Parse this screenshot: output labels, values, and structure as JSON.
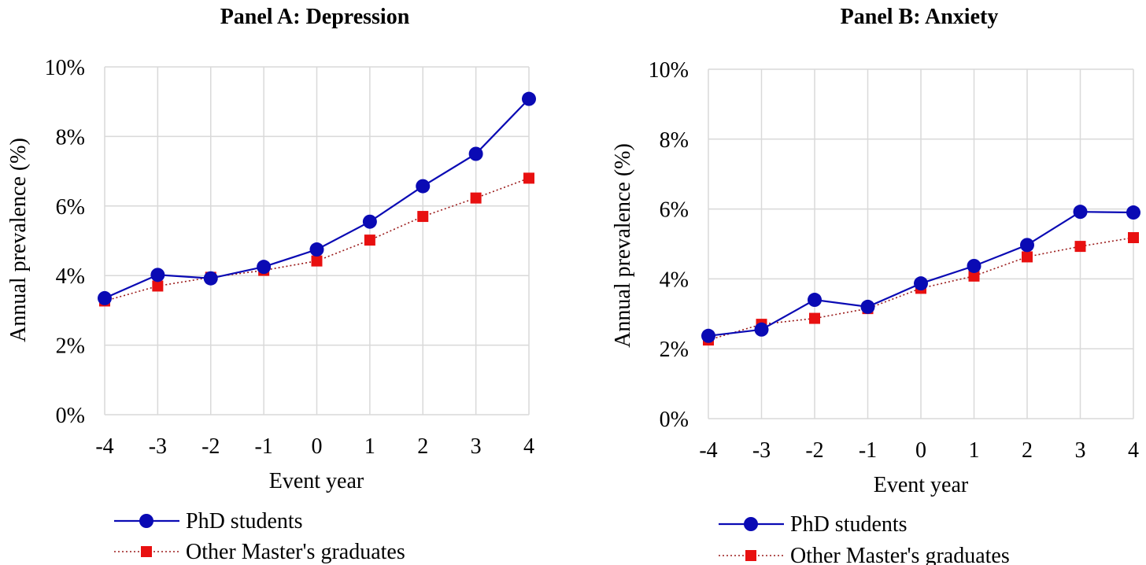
{
  "chart_data": [
    {
      "type": "line",
      "title": "Panel A: Depression",
      "xlabel": "Event year",
      "ylabel": "Annual prevalence (%)",
      "x": [
        -4,
        -3,
        -2,
        -1,
        0,
        1,
        2,
        3,
        4
      ],
      "x_tick_labels": [
        "-4",
        "-3",
        "-2",
        "-1",
        "0",
        "1",
        "2",
        "3",
        "4"
      ],
      "ylim": [
        0,
        10
      ],
      "y_tick_labels": [
        "0%",
        "2%",
        "4%",
        "6%",
        "8%",
        "10%"
      ],
      "grid": true,
      "legend_placement": "bottom",
      "series": [
        {
          "name": "PhD students",
          "values": [
            3.35,
            4.02,
            3.92,
            4.25,
            4.75,
            5.55,
            6.57,
            7.5,
            9.08
          ],
          "color": "#0a0ab4",
          "marker": "circle",
          "line": "solid"
        },
        {
          "name": "Other Master's graduates",
          "values": [
            3.27,
            3.7,
            3.95,
            4.15,
            4.42,
            5.02,
            5.7,
            6.23,
            6.8
          ],
          "color": "#e81010",
          "line_color": "#9b1b1b",
          "marker": "square",
          "line": "dotted"
        }
      ]
    },
    {
      "type": "line",
      "title": "Panel B: Anxiety",
      "xlabel": "Event year",
      "ylabel": "Annual prevalence (%)",
      "x": [
        -4,
        -3,
        -2,
        -1,
        0,
        1,
        2,
        3,
        4
      ],
      "x_tick_labels": [
        "-4",
        "-3",
        "-2",
        "-1",
        "0",
        "1",
        "2",
        "3",
        "4"
      ],
      "ylim": [
        0,
        10
      ],
      "y_tick_labels": [
        "0%",
        "2%",
        "4%",
        "6%",
        "8%",
        "10%"
      ],
      "grid": true,
      "legend_placement": "bottom",
      "series": [
        {
          "name": "PhD students",
          "values": [
            2.37,
            2.55,
            3.4,
            3.2,
            3.87,
            4.37,
            4.97,
            5.92,
            5.9
          ],
          "color": "#0a0ab4",
          "marker": "circle",
          "line": "solid"
        },
        {
          "name": "Other Master's graduates",
          "values": [
            2.25,
            2.7,
            2.87,
            3.15,
            3.73,
            4.08,
            4.63,
            4.93,
            5.18
          ],
          "color": "#e81010",
          "line_color": "#9b1b1b",
          "marker": "square",
          "line": "dotted"
        }
      ]
    }
  ]
}
